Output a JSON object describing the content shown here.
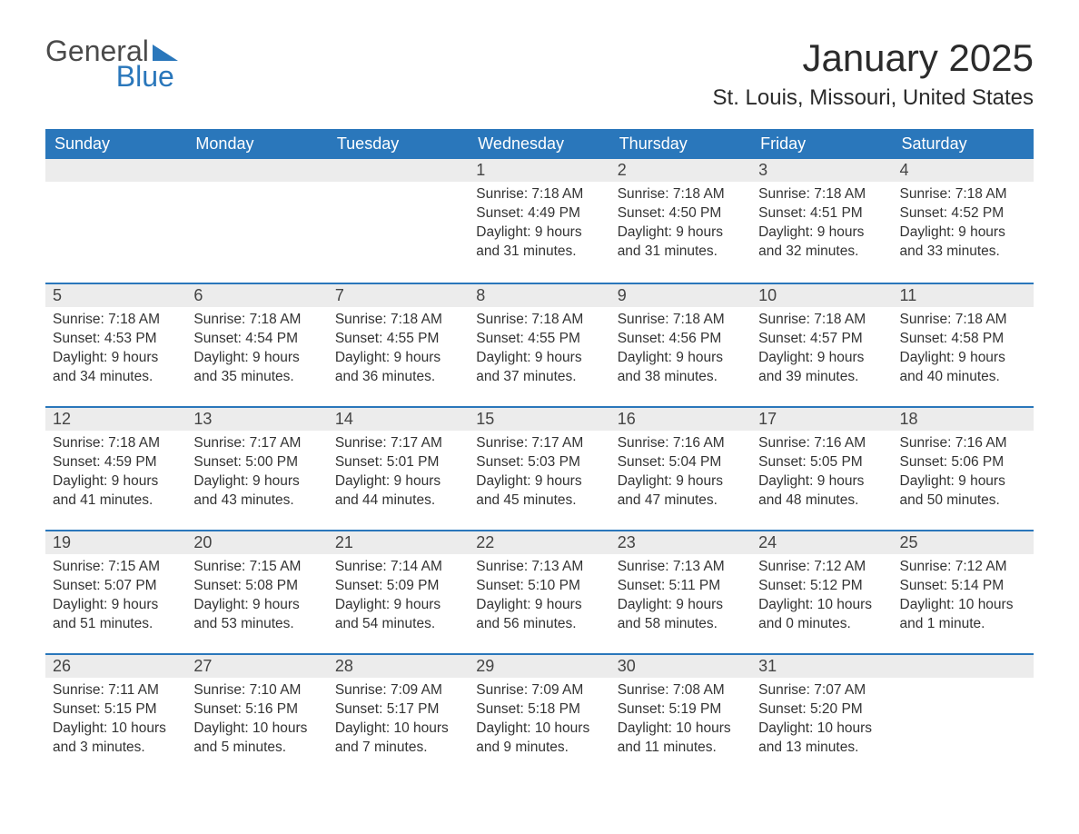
{
  "brand": {
    "word1": "General",
    "word2": "Blue",
    "accent": "#2a77bb",
    "text": "#4a4a4a"
  },
  "title": "January 2025",
  "location": "St. Louis, Missouri, United States",
  "colors": {
    "header_bg": "#2a77bb",
    "header_text": "#ffffff",
    "daynum_bg": "#ececec",
    "border_top": "#2a77bb",
    "body_text": "#333333",
    "page_bg": "#ffffff"
  },
  "weekdays": [
    "Sunday",
    "Monday",
    "Tuesday",
    "Wednesday",
    "Thursday",
    "Friday",
    "Saturday"
  ],
  "weeks": [
    [
      null,
      null,
      null,
      {
        "n": "1",
        "sunrise": "7:18 AM",
        "sunset": "4:49 PM",
        "daylight": "9 hours and 31 minutes."
      },
      {
        "n": "2",
        "sunrise": "7:18 AM",
        "sunset": "4:50 PM",
        "daylight": "9 hours and 31 minutes."
      },
      {
        "n": "3",
        "sunrise": "7:18 AM",
        "sunset": "4:51 PM",
        "daylight": "9 hours and 32 minutes."
      },
      {
        "n": "4",
        "sunrise": "7:18 AM",
        "sunset": "4:52 PM",
        "daylight": "9 hours and 33 minutes."
      }
    ],
    [
      {
        "n": "5",
        "sunrise": "7:18 AM",
        "sunset": "4:53 PM",
        "daylight": "9 hours and 34 minutes."
      },
      {
        "n": "6",
        "sunrise": "7:18 AM",
        "sunset": "4:54 PM",
        "daylight": "9 hours and 35 minutes."
      },
      {
        "n": "7",
        "sunrise": "7:18 AM",
        "sunset": "4:55 PM",
        "daylight": "9 hours and 36 minutes."
      },
      {
        "n": "8",
        "sunrise": "7:18 AM",
        "sunset": "4:55 PM",
        "daylight": "9 hours and 37 minutes."
      },
      {
        "n": "9",
        "sunrise": "7:18 AM",
        "sunset": "4:56 PM",
        "daylight": "9 hours and 38 minutes."
      },
      {
        "n": "10",
        "sunrise": "7:18 AM",
        "sunset": "4:57 PM",
        "daylight": "9 hours and 39 minutes."
      },
      {
        "n": "11",
        "sunrise": "7:18 AM",
        "sunset": "4:58 PM",
        "daylight": "9 hours and 40 minutes."
      }
    ],
    [
      {
        "n": "12",
        "sunrise": "7:18 AM",
        "sunset": "4:59 PM",
        "daylight": "9 hours and 41 minutes."
      },
      {
        "n": "13",
        "sunrise": "7:17 AM",
        "sunset": "5:00 PM",
        "daylight": "9 hours and 43 minutes."
      },
      {
        "n": "14",
        "sunrise": "7:17 AM",
        "sunset": "5:01 PM",
        "daylight": "9 hours and 44 minutes."
      },
      {
        "n": "15",
        "sunrise": "7:17 AM",
        "sunset": "5:03 PM",
        "daylight": "9 hours and 45 minutes."
      },
      {
        "n": "16",
        "sunrise": "7:16 AM",
        "sunset": "5:04 PM",
        "daylight": "9 hours and 47 minutes."
      },
      {
        "n": "17",
        "sunrise": "7:16 AM",
        "sunset": "5:05 PM",
        "daylight": "9 hours and 48 minutes."
      },
      {
        "n": "18",
        "sunrise": "7:16 AM",
        "sunset": "5:06 PM",
        "daylight": "9 hours and 50 minutes."
      }
    ],
    [
      {
        "n": "19",
        "sunrise": "7:15 AM",
        "sunset": "5:07 PM",
        "daylight": "9 hours and 51 minutes."
      },
      {
        "n": "20",
        "sunrise": "7:15 AM",
        "sunset": "5:08 PM",
        "daylight": "9 hours and 53 minutes."
      },
      {
        "n": "21",
        "sunrise": "7:14 AM",
        "sunset": "5:09 PM",
        "daylight": "9 hours and 54 minutes."
      },
      {
        "n": "22",
        "sunrise": "7:13 AM",
        "sunset": "5:10 PM",
        "daylight": "9 hours and 56 minutes."
      },
      {
        "n": "23",
        "sunrise": "7:13 AM",
        "sunset": "5:11 PM",
        "daylight": "9 hours and 58 minutes."
      },
      {
        "n": "24",
        "sunrise": "7:12 AM",
        "sunset": "5:12 PM",
        "daylight": "10 hours and 0 minutes."
      },
      {
        "n": "25",
        "sunrise": "7:12 AM",
        "sunset": "5:14 PM",
        "daylight": "10 hours and 1 minute."
      }
    ],
    [
      {
        "n": "26",
        "sunrise": "7:11 AM",
        "sunset": "5:15 PM",
        "daylight": "10 hours and 3 minutes."
      },
      {
        "n": "27",
        "sunrise": "7:10 AM",
        "sunset": "5:16 PM",
        "daylight": "10 hours and 5 minutes."
      },
      {
        "n": "28",
        "sunrise": "7:09 AM",
        "sunset": "5:17 PM",
        "daylight": "10 hours and 7 minutes."
      },
      {
        "n": "29",
        "sunrise": "7:09 AM",
        "sunset": "5:18 PM",
        "daylight": "10 hours and 9 minutes."
      },
      {
        "n": "30",
        "sunrise": "7:08 AM",
        "sunset": "5:19 PM",
        "daylight": "10 hours and 11 minutes."
      },
      {
        "n": "31",
        "sunrise": "7:07 AM",
        "sunset": "5:20 PM",
        "daylight": "10 hours and 13 minutes."
      },
      null
    ]
  ],
  "labels": {
    "sunrise": "Sunrise: ",
    "sunset": "Sunset: ",
    "daylight": "Daylight: "
  }
}
